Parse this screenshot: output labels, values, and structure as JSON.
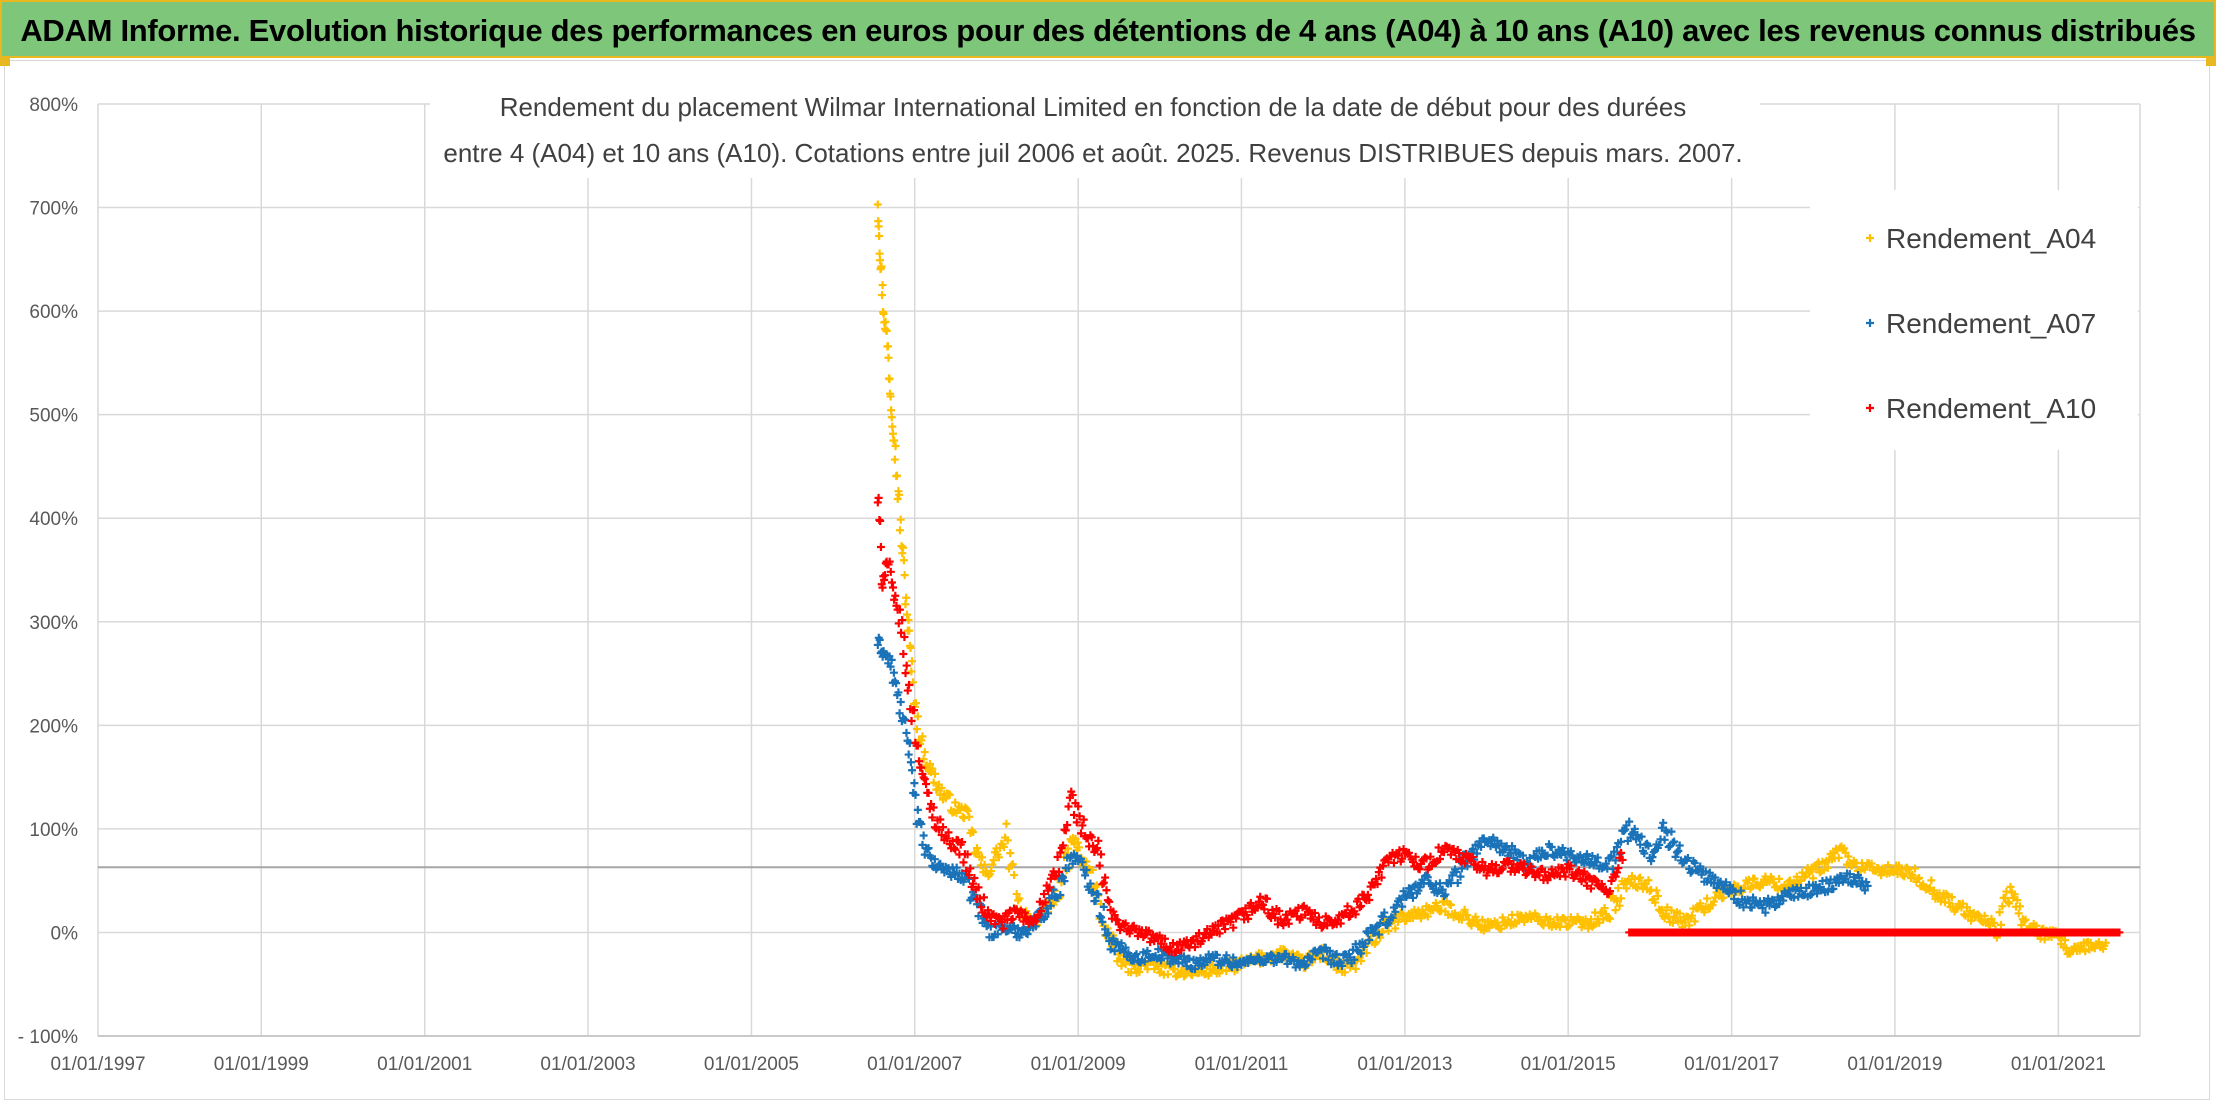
{
  "header": {
    "title": "ADAM Informe. Evolution historique des performances en euros pour des détentions de 4 ans (A04) à 10 ans (A10) avec les revenus connus distribués"
  },
  "chart_data": {
    "type": "scatter",
    "title_lines": [
      "Rendement du placement Wilmar International Limited en fonction de la date de début pour des durées",
      "entre 4 (A04) et 10 ans (A10). Cotations entre juil 2006 et août. 2025. Revenus DISTRIBUES depuis mars. 2007."
    ],
    "xlabel": "",
    "ylabel": "",
    "xlim": [
      "1997-01-01",
      "2022-01-01"
    ],
    "ylim": [
      -100,
      800
    ],
    "x_ticks": [
      "01/01/1997",
      "01/01/1999",
      "01/01/2001",
      "01/01/2003",
      "01/01/2005",
      "01/01/2007",
      "01/01/2009",
      "01/01/2011",
      "01/01/2013",
      "01/01/2015",
      "01/01/2017",
      "01/01/2019",
      "01/01/2021"
    ],
    "y_ticks": [
      "- 100%",
      "0%",
      "100%",
      "200%",
      "300%",
      "400%",
      "500%",
      "600%",
      "700%",
      "800%"
    ],
    "reference_line_y": 63,
    "grid": true,
    "legend_position": "top-right",
    "marker": "+",
    "series": [
      {
        "name": "Rendement_A04",
        "color": "#ffc000",
        "points": [
          [
            "2006-07-20",
            710
          ],
          [
            "2006-08-01",
            650
          ],
          [
            "2006-08-15",
            600
          ],
          [
            "2006-09-01",
            570
          ],
          [
            "2006-09-15",
            520
          ],
          [
            "2006-10-01",
            480
          ],
          [
            "2006-10-20",
            420
          ],
          [
            "2006-11-10",
            360
          ],
          [
            "2006-12-01",
            300
          ],
          [
            "2006-12-20",
            250
          ],
          [
            "2007-01-15",
            200
          ],
          [
            "2007-02-15",
            170
          ],
          [
            "2007-03-15",
            155
          ],
          [
            "2007-05-01",
            135
          ],
          [
            "2007-07-01",
            120
          ],
          [
            "2007-08-15",
            115
          ],
          [
            "2007-10-01",
            80
          ],
          [
            "2007-11-15",
            55
          ],
          [
            "2008-01-01",
            75
          ],
          [
            "2008-02-15",
            90
          ],
          [
            "2008-04-01",
            30
          ],
          [
            "2008-06-01",
            10
          ],
          [
            "2008-08-01",
            15
          ],
          [
            "2008-10-01",
            40
          ],
          [
            "2008-12-15",
            90
          ],
          [
            "2009-01-15",
            70
          ],
          [
            "2009-03-01",
            55
          ],
          [
            "2009-05-01",
            5
          ],
          [
            "2009-07-01",
            -25
          ],
          [
            "2009-09-01",
            -35
          ],
          [
            "2009-11-01",
            -30
          ],
          [
            "2010-01-01",
            -35
          ],
          [
            "2010-04-01",
            -38
          ],
          [
            "2010-07-01",
            -38
          ],
          [
            "2010-10-01",
            -35
          ],
          [
            "2011-01-01",
            -30
          ],
          [
            "2011-04-01",
            -25
          ],
          [
            "2011-07-01",
            -20
          ],
          [
            "2011-10-01",
            -30
          ],
          [
            "2012-01-01",
            -20
          ],
          [
            "2012-04-01",
            -35
          ],
          [
            "2012-06-01",
            -30
          ],
          [
            "2012-08-01",
            -10
          ],
          [
            "2012-10-01",
            5
          ],
          [
            "2013-01-01",
            15
          ],
          [
            "2013-04-01",
            20
          ],
          [
            "2013-07-01",
            25
          ],
          [
            "2013-10-01",
            15
          ],
          [
            "2014-01-01",
            5
          ],
          [
            "2014-04-01",
            10
          ],
          [
            "2014-07-01",
            15
          ],
          [
            "2014-10-01",
            10
          ],
          [
            "2015-01-01",
            10
          ],
          [
            "2015-04-01",
            10
          ],
          [
            "2015-07-01",
            20
          ],
          [
            "2015-10-01",
            50
          ],
          [
            "2016-01-01",
            45
          ],
          [
            "2016-03-01",
            20
          ],
          [
            "2016-06-01",
            10
          ],
          [
            "2016-09-01",
            25
          ],
          [
            "2016-12-01",
            40
          ],
          [
            "2017-03-01",
            45
          ],
          [
            "2017-06-01",
            50
          ],
          [
            "2017-09-01",
            45
          ],
          [
            "2017-12-01",
            55
          ],
          [
            "2018-03-01",
            65
          ],
          [
            "2018-05-01",
            80
          ],
          [
            "2018-07-01",
            65
          ],
          [
            "2018-10-01",
            60
          ],
          [
            "2019-01-01",
            60
          ],
          [
            "2019-04-01",
            55
          ],
          [
            "2019-07-01",
            40
          ],
          [
            "2019-10-01",
            25
          ],
          [
            "2020-01-01",
            15
          ],
          [
            "2020-04-01",
            5
          ],
          [
            "2020-06-01",
            40
          ],
          [
            "2020-08-01",
            10
          ],
          [
            "2020-10-01",
            0
          ],
          [
            "2021-01-01",
            -5
          ],
          [
            "2021-03-01",
            -20
          ],
          [
            "2021-05-01",
            -15
          ],
          [
            "2021-08-01",
            -10
          ]
        ]
      },
      {
        "name": "Rendement_A07",
        "color": "#1a73b8",
        "points": [
          [
            "2006-07-20",
            280
          ],
          [
            "2006-08-15",
            270
          ],
          [
            "2006-09-15",
            260
          ],
          [
            "2006-10-15",
            230
          ],
          [
            "2006-11-15",
            200
          ],
          [
            "2006-12-15",
            170
          ],
          [
            "2007-01-15",
            110
          ],
          [
            "2007-02-15",
            80
          ],
          [
            "2007-04-01",
            65
          ],
          [
            "2007-06-01",
            60
          ],
          [
            "2007-08-01",
            55
          ],
          [
            "2007-10-01",
            30
          ],
          [
            "2007-12-01",
            0
          ],
          [
            "2008-02-01",
            5
          ],
          [
            "2008-04-01",
            0
          ],
          [
            "2008-06-01",
            5
          ],
          [
            "2008-08-01",
            20
          ],
          [
            "2008-10-01",
            40
          ],
          [
            "2008-12-01",
            75
          ],
          [
            "2009-02-01",
            60
          ],
          [
            "2009-04-01",
            30
          ],
          [
            "2009-06-01",
            -10
          ],
          [
            "2009-08-01",
            -20
          ],
          [
            "2009-10-01",
            -25
          ],
          [
            "2009-12-01",
            -20
          ],
          [
            "2010-03-01",
            -25
          ],
          [
            "2010-06-01",
            -30
          ],
          [
            "2010-09-01",
            -25
          ],
          [
            "2011-01-01",
            -30
          ],
          [
            "2011-04-01",
            -25
          ],
          [
            "2011-07-01",
            -25
          ],
          [
            "2011-10-01",
            -30
          ],
          [
            "2012-01-01",
            -20
          ],
          [
            "2012-04-01",
            -30
          ],
          [
            "2012-07-01",
            -10
          ],
          [
            "2012-10-01",
            10
          ],
          [
            "2013-01-01",
            35
          ],
          [
            "2013-04-01",
            50
          ],
          [
            "2013-07-01",
            40
          ],
          [
            "2013-10-01",
            70
          ],
          [
            "2014-01-01",
            90
          ],
          [
            "2014-04-01",
            80
          ],
          [
            "2014-07-01",
            65
          ],
          [
            "2014-10-01",
            80
          ],
          [
            "2015-01-01",
            75
          ],
          [
            "2015-04-01",
            70
          ],
          [
            "2015-07-01",
            65
          ],
          [
            "2015-10-01",
            100
          ],
          [
            "2016-01-01",
            75
          ],
          [
            "2016-03-01",
            100
          ],
          [
            "2016-06-01",
            70
          ],
          [
            "2016-09-01",
            55
          ],
          [
            "2016-12-01",
            45
          ],
          [
            "2017-03-01",
            30
          ],
          [
            "2017-06-01",
            25
          ],
          [
            "2017-09-01",
            35
          ],
          [
            "2017-12-01",
            40
          ],
          [
            "2018-03-01",
            45
          ],
          [
            "2018-06-01",
            55
          ],
          [
            "2018-09-01",
            45
          ]
        ]
      },
      {
        "name": "Rendement_A10",
        "color": "#ff0000",
        "points": [
          [
            "2006-07-20",
            420
          ],
          [
            "2006-08-10",
            340
          ],
          [
            "2006-09-01",
            360
          ],
          [
            "2006-10-01",
            320
          ],
          [
            "2006-11-01",
            300
          ],
          [
            "2006-12-01",
            240
          ],
          [
            "2007-01-15",
            180
          ],
          [
            "2007-02-15",
            140
          ],
          [
            "2007-04-01",
            110
          ],
          [
            "2007-06-01",
            90
          ],
          [
            "2007-08-01",
            80
          ],
          [
            "2007-10-01",
            40
          ],
          [
            "2007-12-01",
            15
          ],
          [
            "2008-02-01",
            10
          ],
          [
            "2008-04-01",
            20
          ],
          [
            "2008-06-01",
            10
          ],
          [
            "2008-08-01",
            30
          ],
          [
            "2008-10-01",
            60
          ],
          [
            "2008-12-01",
            130
          ],
          [
            "2009-02-01",
            95
          ],
          [
            "2009-04-01",
            75
          ],
          [
            "2009-06-01",
            15
          ],
          [
            "2009-08-01",
            5
          ],
          [
            "2009-10-01",
            0
          ],
          [
            "2009-12-01",
            -5
          ],
          [
            "2010-03-01",
            -15
          ],
          [
            "2010-06-01",
            -10
          ],
          [
            "2010-09-01",
            0
          ],
          [
            "2011-01-01",
            15
          ],
          [
            "2011-04-01",
            30
          ],
          [
            "2011-07-01",
            10
          ],
          [
            "2011-10-01",
            20
          ],
          [
            "2012-01-01",
            10
          ],
          [
            "2012-04-01",
            15
          ],
          [
            "2012-07-01",
            30
          ],
          [
            "2012-10-01",
            70
          ],
          [
            "2013-01-01",
            75
          ],
          [
            "2013-04-01",
            65
          ],
          [
            "2013-07-01",
            80
          ],
          [
            "2013-10-01",
            70
          ],
          [
            "2014-01-01",
            60
          ],
          [
            "2014-04-01",
            65
          ],
          [
            "2014-07-01",
            60
          ],
          [
            "2014-10-01",
            55
          ],
          [
            "2015-01-01",
            60
          ],
          [
            "2015-04-01",
            50
          ],
          [
            "2015-07-01",
            40
          ],
          [
            "2015-09-01",
            70
          ]
        ]
      },
      {
        "name": "Rendement_A10",
        "color": "#ff0000",
        "points": [
          [
            "2015-10-01",
            0
          ],
          [
            "2016-04-01",
            0
          ],
          [
            "2016-10-01",
            0
          ],
          [
            "2017-04-01",
            0
          ],
          [
            "2017-10-01",
            0
          ],
          [
            "2018-04-01",
            0
          ],
          [
            "2018-10-01",
            0
          ],
          [
            "2019-04-01",
            0
          ],
          [
            "2019-10-01",
            0
          ],
          [
            "2020-04-01",
            0
          ],
          [
            "2020-10-01",
            0
          ],
          [
            "2021-04-01",
            0
          ],
          [
            "2021-10-01",
            0
          ]
        ]
      }
    ]
  }
}
